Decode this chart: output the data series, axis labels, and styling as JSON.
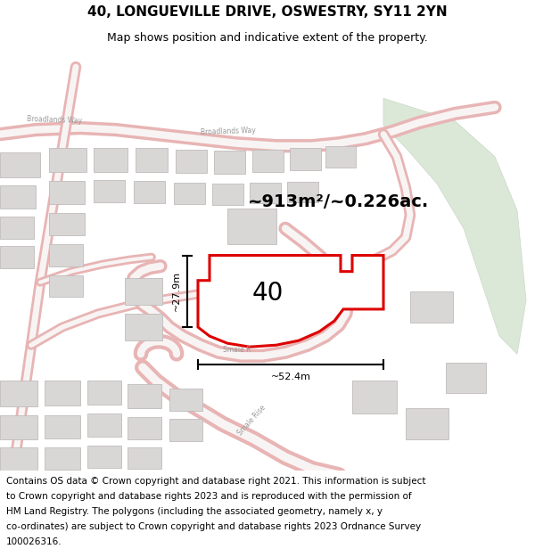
{
  "title": "40, LONGUEVILLE DRIVE, OSWESTRY, SY11 2YN",
  "subtitle": "Map shows position and indicative extent of the property.",
  "area_text": "~913m²/~0.226ac.",
  "width_label": "~52.4m",
  "height_label": "~27.9m",
  "plot_number": "40",
  "footer_lines": [
    "Contains OS data © Crown copyright and database right 2021. This information is subject",
    "to Crown copyright and database rights 2023 and is reproduced with the permission of",
    "HM Land Registry. The polygons (including the associated geometry, namely x, y",
    "co-ordinates) are subject to Crown copyright and database rights 2023 Ordnance Survey",
    "100026316."
  ],
  "map_bg": "#f2efef",
  "road_color": "#e8b4b4",
  "road_center_color": "#f8f4f4",
  "building_color": "#d9d6d6",
  "building_edge": "#c0bcbc",
  "plot_outline_color": "#dd0000",
  "green_area_color": "#dbe8d8",
  "green_edge_color": "#c8d9c5",
  "title_fontsize": 11,
  "subtitle_fontsize": 9,
  "footer_fontsize": 7.5,
  "map_text_color": "#999999"
}
